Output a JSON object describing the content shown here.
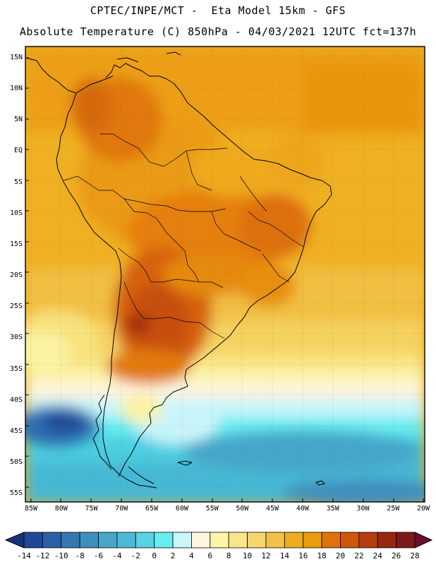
{
  "header": {
    "line1": "CPTEC/INPE/MCT -  Eta Model 15km - GFS",
    "line2": "Absolute Temperature (C) 850hPa - 04/03/2021 12UTC fct=137h"
  },
  "map": {
    "lon_range": [
      -85,
      -20
    ],
    "lat_range": [
      -58,
      16
    ],
    "lat_ticks": [
      {
        "value": 15,
        "label": "15N"
      },
      {
        "value": 10,
        "label": "10N"
      },
      {
        "value": 5,
        "label": "5N"
      },
      {
        "value": 0,
        "label": "EQ"
      },
      {
        "value": -5,
        "label": "5S"
      },
      {
        "value": -10,
        "label": "10S"
      },
      {
        "value": -15,
        "label": "15S"
      },
      {
        "value": -20,
        "label": "20S"
      },
      {
        "value": -25,
        "label": "25S"
      },
      {
        "value": -30,
        "label": "30S"
      },
      {
        "value": -35,
        "label": "35S"
      },
      {
        "value": -40,
        "label": "40S"
      },
      {
        "value": -45,
        "label": "45S"
      },
      {
        "value": -50,
        "label": "50S"
      },
      {
        "value": -55,
        "label": "55S"
      }
    ],
    "lon_ticks": [
      {
        "value": -85,
        "label": "85W"
      },
      {
        "value": -80,
        "label": "80W"
      },
      {
        "value": -75,
        "label": "75W"
      },
      {
        "value": -70,
        "label": "70W"
      },
      {
        "value": -65,
        "label": "65W"
      },
      {
        "value": -60,
        "label": "60W"
      },
      {
        "value": -55,
        "label": "55W"
      },
      {
        "value": -50,
        "label": "50W"
      },
      {
        "value": -45,
        "label": "45W"
      },
      {
        "value": -40,
        "label": "40W"
      },
      {
        "value": -35,
        "label": "35W"
      },
      {
        "value": -30,
        "label": "30W"
      },
      {
        "value": -25,
        "label": "25W"
      },
      {
        "value": -20,
        "label": "20W"
      }
    ]
  },
  "colorbar": {
    "labels": [
      "-14",
      "-12",
      "-10",
      "-8",
      "-6",
      "-4",
      "-2",
      "0",
      "2",
      "4",
      "6",
      "8",
      "10",
      "12",
      "14",
      "16",
      "18",
      "20",
      "22",
      "24",
      "26",
      "28"
    ],
    "colors": [
      "#16337e",
      "#1f4896",
      "#2b5fa8",
      "#3577b3",
      "#3f8fbe",
      "#46a5c9",
      "#4cbad6",
      "#58d2e2",
      "#66edf0",
      "#c8f6fb",
      "#fdf6e3",
      "#fbf5a7",
      "#fae58a",
      "#f6d56c",
      "#f1c14a",
      "#eeac22",
      "#ea9c10",
      "#e0720c",
      "#cf560b",
      "#b73c0d",
      "#962710",
      "#7b1a18",
      "#6a0f2a"
    ]
  },
  "temperature_field": {
    "Equatorial band / Amazon (5N-10S)": "16 to 20",
    "Central Brazil (10S-20S)": "18 to 22",
    "Chaco / northern Argentina max (22S-33S)": "22 to 24",
    "Atlantic subtropics (20S-35S)": "14 to 18",
    "Northern Patagonia (38S-42S)": "6 to 12",
    "Southern Patagonia (45S-50S)": "-2 to 4",
    "Drake Passage (55S)": "-4 to 2",
    "Pacific west of Chile (30S)": "8 to 12"
  }
}
